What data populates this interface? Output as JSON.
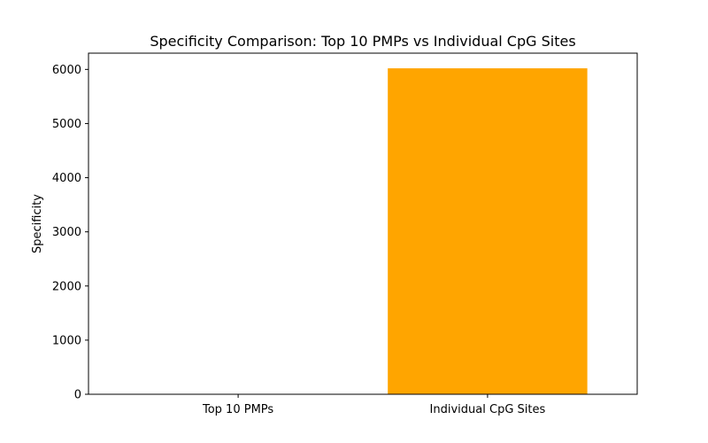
{
  "chart_data": {
    "type": "bar",
    "title": "Specificity Comparison: Top 10 PMPs vs Individual CpG Sites",
    "xlabel": "",
    "ylabel": "Specificity",
    "categories": [
      "Top 10 PMPs",
      "Individual CpG Sites"
    ],
    "values": [
      0.9,
      6020
    ],
    "colors": [
      "#1f77b4",
      "#ffa500"
    ],
    "ylim": [
      0,
      6300
    ],
    "yticks": [
      0,
      1000,
      2000,
      3000,
      4000,
      5000,
      6000
    ],
    "grid": false,
    "legend": "none"
  }
}
